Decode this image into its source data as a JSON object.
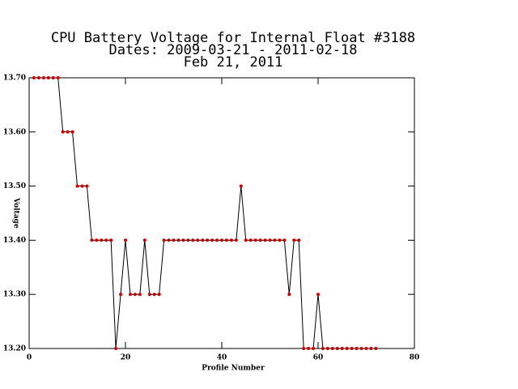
{
  "chart_data": {
    "type": "line",
    "title": [
      "CPU Battery Voltage for Internal Float #3188",
      "Dates:  2009-03-21 -  2011-02-18",
      "Feb 21, 2011"
    ],
    "xlabel": "Profile Number",
    "ylabel": "Voltage",
    "x": [
      1,
      2,
      3,
      4,
      5,
      6,
      7,
      8,
      9,
      10,
      11,
      12,
      13,
      14,
      15,
      16,
      17,
      18,
      19,
      20,
      21,
      22,
      23,
      24,
      25,
      26,
      27,
      28,
      29,
      30,
      31,
      32,
      33,
      34,
      35,
      36,
      37,
      38,
      39,
      40,
      41,
      42,
      43,
      44,
      45,
      46,
      47,
      48,
      49,
      50,
      51,
      52,
      53,
      54,
      55,
      56,
      57,
      58,
      59,
      60,
      61,
      62,
      63,
      64,
      65,
      66,
      67,
      68,
      69,
      70,
      71,
      72
    ],
    "values": [
      13.7,
      13.7,
      13.7,
      13.7,
      13.7,
      13.7,
      13.6,
      13.6,
      13.6,
      13.5,
      13.5,
      13.5,
      13.4,
      13.4,
      13.4,
      13.4,
      13.4,
      13.2,
      13.3,
      13.4,
      13.3,
      13.3,
      13.3,
      13.4,
      13.3,
      13.3,
      13.3,
      13.4,
      13.4,
      13.4,
      13.4,
      13.4,
      13.4,
      13.4,
      13.4,
      13.4,
      13.4,
      13.4,
      13.4,
      13.4,
      13.4,
      13.4,
      13.4,
      13.5,
      13.4,
      13.4,
      13.4,
      13.4,
      13.4,
      13.4,
      13.4,
      13.4,
      13.4,
      13.3,
      13.4,
      13.4,
      13.2,
      13.2,
      13.2,
      13.3,
      13.2,
      13.2,
      13.2,
      13.2,
      13.2,
      13.2,
      13.2,
      13.2,
      13.2,
      13.2,
      13.2,
      13.2
    ],
    "color": "#000000",
    "marker_color": "#cc0000",
    "xlim": [
      0,
      80
    ],
    "xticks": [
      0,
      20,
      40,
      60,
      80
    ],
    "ylim": [
      13.2,
      13.7
    ],
    "yticks": [
      {
        "value": 13.2,
        "label": "13.20"
      },
      {
        "value": 13.3,
        "label": "13.30"
      },
      {
        "value": 13.4,
        "label": "13.40"
      },
      {
        "value": 13.5,
        "label": "13.50"
      },
      {
        "value": 13.6,
        "label": "13.60"
      },
      {
        "value": 13.7,
        "label": "13.70"
      }
    ]
  }
}
